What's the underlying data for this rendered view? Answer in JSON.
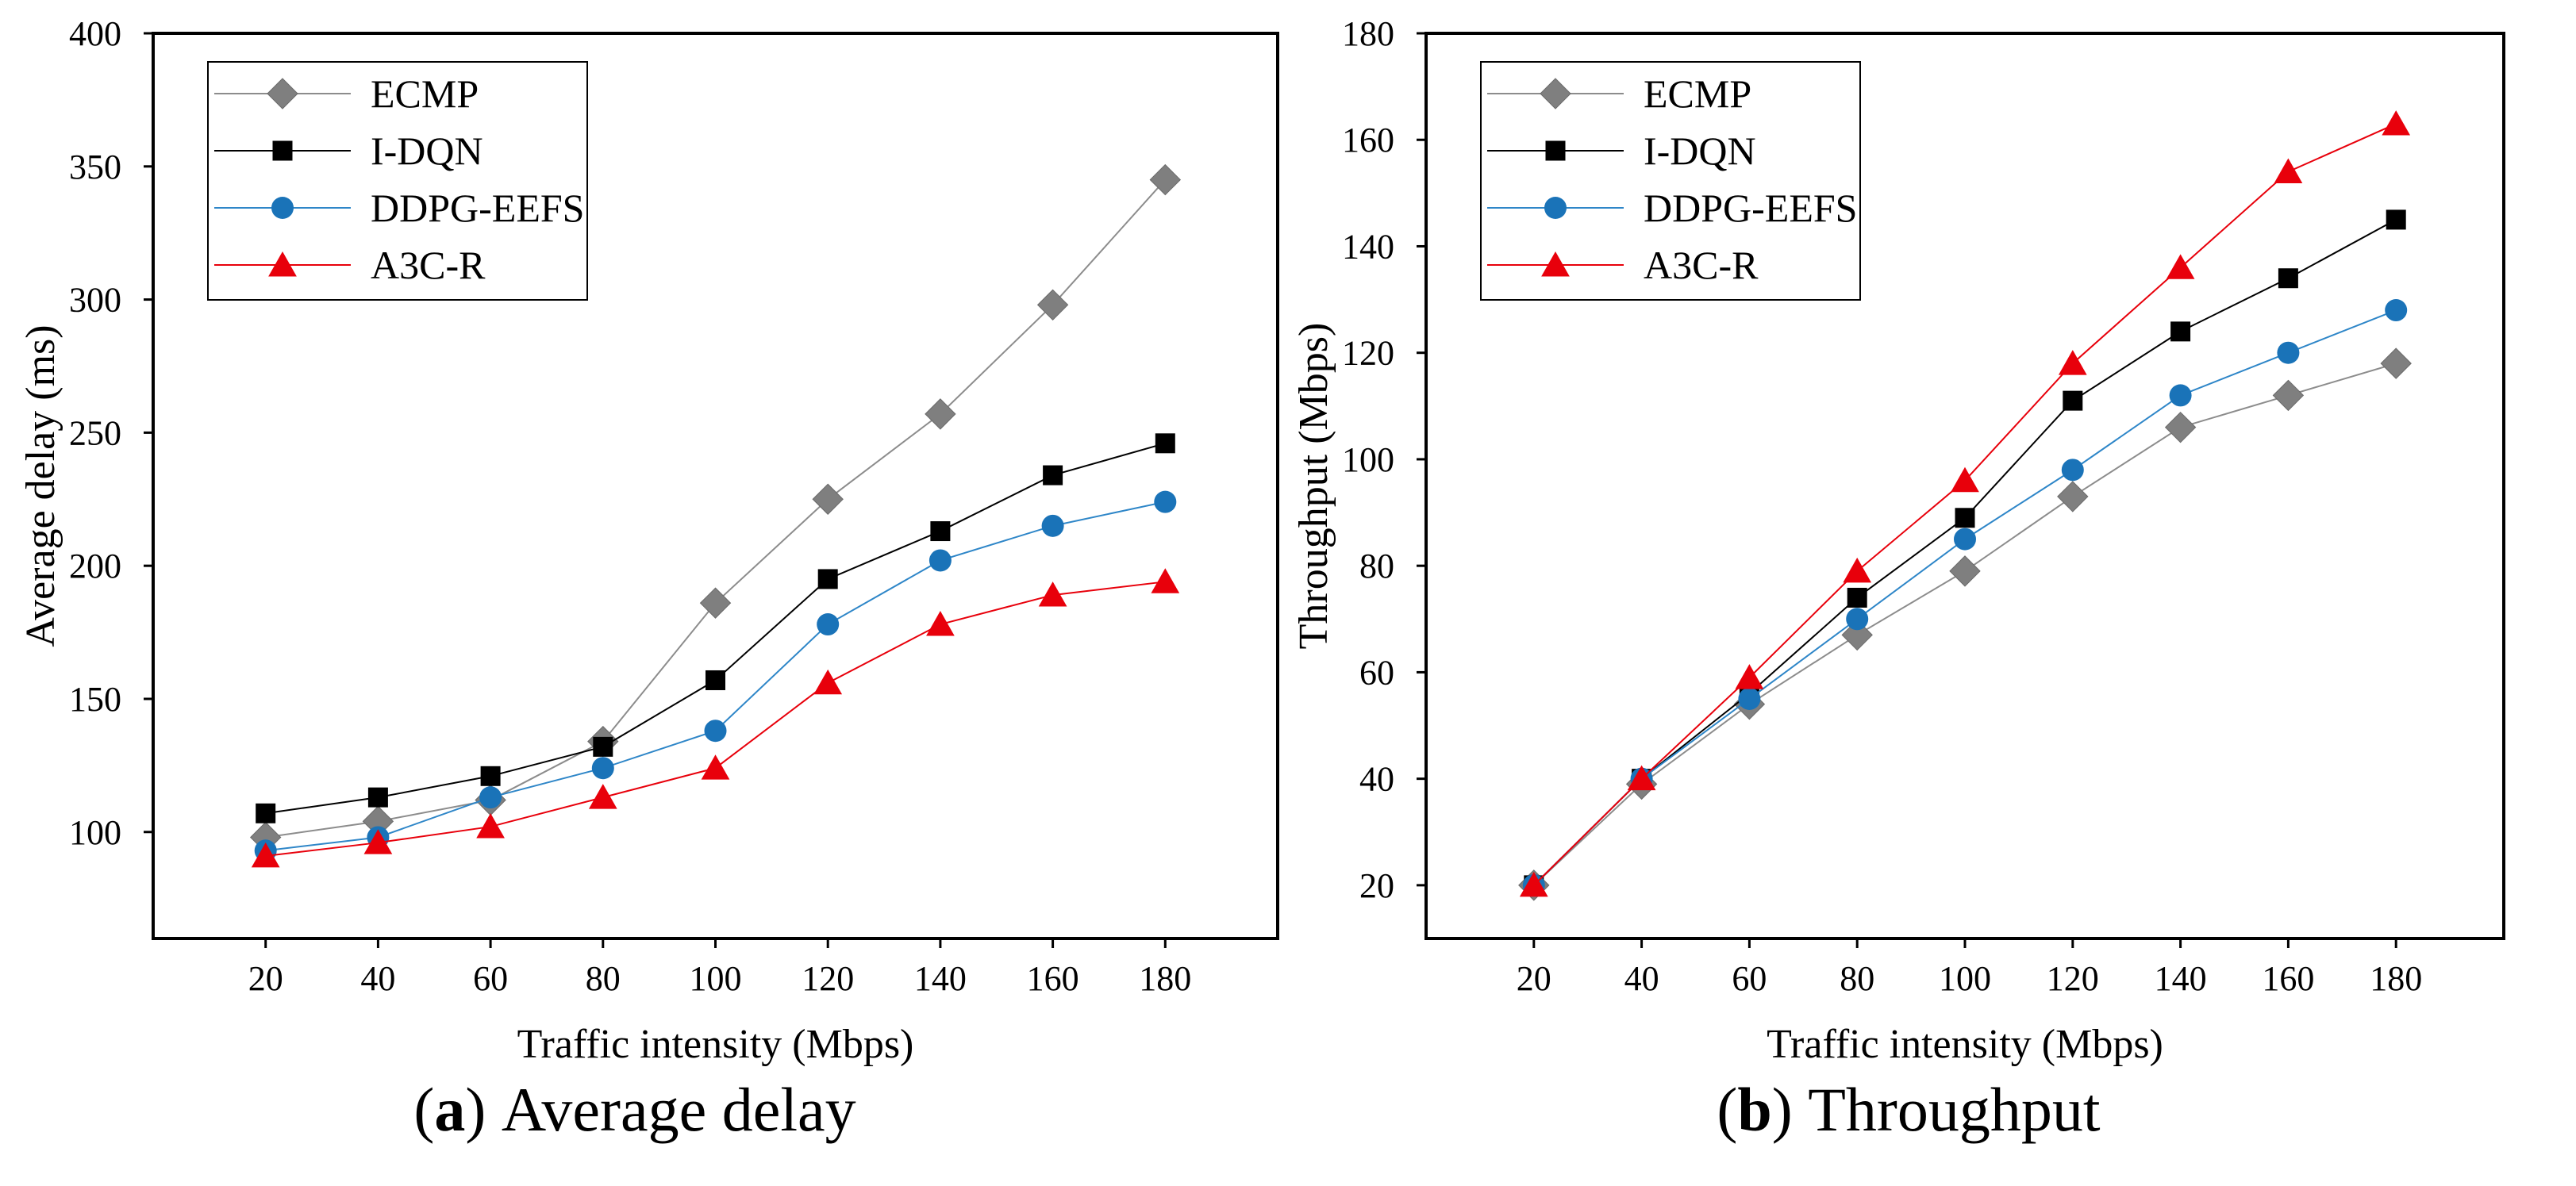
{
  "chart_data": [
    {
      "type": "line",
      "id": "a",
      "caption": {
        "letter": "a",
        "text": " Average delay",
        "open": "(",
        "close": ")"
      },
      "xlabel": "Traffic intensity (Mbps)",
      "ylabel": "Average delay (ms)",
      "x": [
        20,
        40,
        60,
        80,
        100,
        120,
        140,
        160,
        180
      ],
      "xlim": [
        0,
        200
      ],
      "ylim": [
        60,
        400
      ],
      "xticks": [
        20,
        40,
        60,
        80,
        100,
        120,
        140,
        160,
        180
      ],
      "yticks": [
        100,
        150,
        200,
        250,
        300,
        350,
        400
      ],
      "legend_position": "top-left",
      "series": [
        {
          "name": "ECMP",
          "marker": "diamond",
          "color": "#7f7f7f",
          "line_color": "#8c8c8c",
          "values": [
            98,
            104,
            112,
            134,
            186,
            225,
            257,
            298,
            345
          ]
        },
        {
          "name": "I-DQN",
          "marker": "square",
          "color": "#000000",
          "line_color": "#000000",
          "values": [
            107,
            113,
            121,
            132,
            157,
            195,
            213,
            234,
            246
          ]
        },
        {
          "name": "DDPG-EEFS",
          "marker": "circle",
          "color": "#1a73b8",
          "line_color": "#2e86c8",
          "values": [
            93,
            98,
            113,
            124,
            138,
            178,
            202,
            215,
            224
          ]
        },
        {
          "name": "A3C-R",
          "marker": "triangle",
          "color": "#e8000b",
          "line_color": "#e8000b",
          "values": [
            91,
            96,
            102,
            113,
            124,
            156,
            178,
            189,
            194
          ]
        }
      ]
    },
    {
      "type": "line",
      "id": "b",
      "caption": {
        "letter": "b",
        "text": " Throughput",
        "open": "(",
        "close": ")"
      },
      "xlabel": "Traffic intensity (Mbps)",
      "ylabel": "Throughput (Mbps)",
      "x": [
        20,
        40,
        60,
        80,
        100,
        120,
        140,
        160,
        180
      ],
      "xlim": [
        0,
        200
      ],
      "ylim": [
        10,
        180
      ],
      "xticks": [
        20,
        40,
        60,
        80,
        100,
        120,
        140,
        160,
        180
      ],
      "yticks": [
        20,
        40,
        60,
        80,
        100,
        120,
        140,
        160,
        180
      ],
      "legend_position": "top-left",
      "series": [
        {
          "name": "ECMP",
          "marker": "diamond",
          "color": "#7f7f7f",
          "line_color": "#8c8c8c",
          "values": [
            20,
            39,
            54,
            67,
            79,
            93,
            106,
            112,
            118
          ]
        },
        {
          "name": "I-DQN",
          "marker": "square",
          "color": "#000000",
          "line_color": "#000000",
          "values": [
            20,
            40,
            56,
            74,
            89,
            111,
            124,
            134,
            145
          ]
        },
        {
          "name": "DDPG-EEFS",
          "marker": "circle",
          "color": "#1a73b8",
          "line_color": "#2e86c8",
          "values": [
            20,
            40,
            55,
            70,
            85,
            98,
            112,
            120,
            128
          ]
        },
        {
          "name": "A3C-R",
          "marker": "triangle",
          "color": "#e8000b",
          "line_color": "#e8000b",
          "values": [
            20,
            40,
            59,
            79,
            96,
            118,
            136,
            154,
            163
          ]
        }
      ]
    }
  ]
}
